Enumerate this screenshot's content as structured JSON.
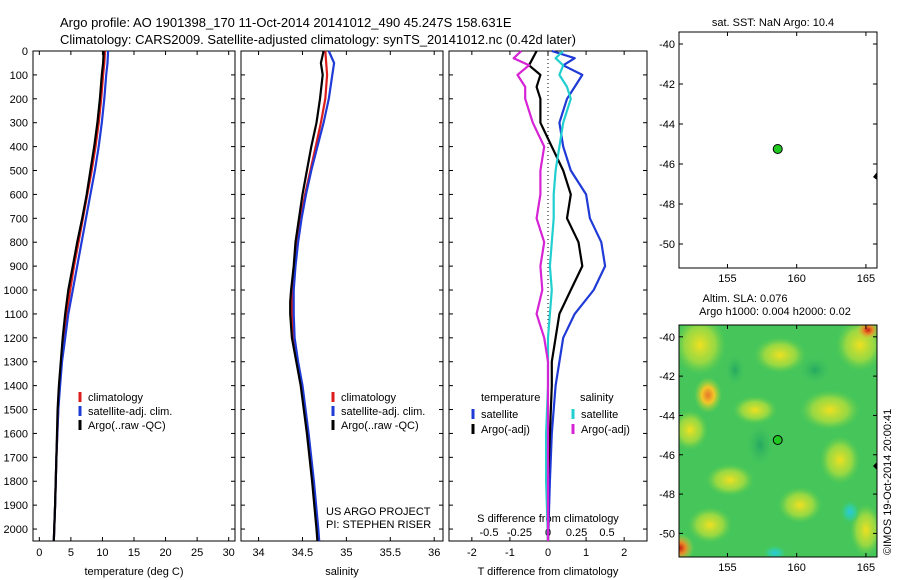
{
  "header": {
    "line1": "Argo profile: AO 1901398_170 11-Oct-2014 20141012_490 45.247S 158.631E",
    "line2": "Climatology: CARS2009. Satellite-adjusted climatology: synTS_20141012.nc (0.42d later)"
  },
  "colors": {
    "climatology": "#dd1c1c",
    "satellite": "#1f3ad6",
    "argo": "#000000",
    "salinity_satellite": "#22cfd0",
    "salinity_argo": "#d623d6",
    "marker": "#21c821"
  },
  "chart_data": [
    {
      "type": "line",
      "id": "temperature",
      "xlabel": "temperature (deg C)",
      "ylabel": "",
      "xlim": [
        -1,
        31
      ],
      "ylim": [
        2050,
        0
      ],
      "xticks": [
        0,
        5,
        10,
        15,
        20,
        25,
        30
      ],
      "yticks": [
        0,
        100,
        200,
        300,
        400,
        500,
        600,
        700,
        800,
        900,
        1000,
        1100,
        1200,
        1300,
        1400,
        1500,
        1600,
        1700,
        1800,
        1900,
        2000
      ],
      "legend": [
        "climatology",
        "satellite-adj. clim.",
        "Argo(..raw -QC)"
      ],
      "legend_position": "lower-right",
      "series": [
        {
          "name": "climatology",
          "color": "#dd1c1c",
          "depth": [
            0,
            50,
            100,
            200,
            300,
            400,
            500,
            600,
            700,
            800,
            900,
            1000,
            1100,
            1200,
            1300,
            1400,
            1500,
            1700,
            1900,
            2050
          ],
          "values": [
            10.4,
            10.3,
            10.1,
            9.8,
            9.4,
            8.9,
            8.3,
            7.6,
            6.9,
            6.2,
            5.5,
            4.9,
            4.3,
            3.9,
            3.5,
            3.2,
            3.0,
            2.7,
            2.5,
            2.3
          ]
        },
        {
          "name": "satellite-adj. clim.",
          "color": "#1f3ad6",
          "depth": [
            0,
            50,
            100,
            200,
            300,
            400,
            500,
            600,
            700,
            800,
            900,
            1000,
            1100,
            1200,
            1300,
            1400,
            1500,
            1700,
            1900,
            2050
          ],
          "values": [
            10.9,
            10.8,
            10.6,
            10.3,
            9.9,
            9.4,
            8.8,
            8.1,
            7.4,
            6.7,
            6.0,
            5.3,
            4.6,
            4.1,
            3.6,
            3.3,
            3.0,
            2.7,
            2.5,
            2.3
          ]
        },
        {
          "name": "Argo(..raw -QC)",
          "color": "#000000",
          "depth": [
            0,
            50,
            100,
            200,
            300,
            400,
            500,
            600,
            700,
            800,
            900,
            1000,
            1100,
            1200,
            1300,
            1400,
            1500,
            1700,
            1900,
            2050
          ],
          "values": [
            10.2,
            10.1,
            9.9,
            9.6,
            9.2,
            8.7,
            8.1,
            7.5,
            6.8,
            6.0,
            5.3,
            4.6,
            4.1,
            3.7,
            3.4,
            3.1,
            2.9,
            2.7,
            2.5,
            2.3
          ]
        }
      ]
    },
    {
      "type": "line",
      "id": "salinity",
      "xlabel": "salinity",
      "ylabel": "",
      "xlim": [
        33.8,
        36.1
      ],
      "ylim": [
        2050,
        0
      ],
      "xticks": [
        34,
        34.5,
        35,
        35.5,
        36
      ],
      "legend": [
        "climatology",
        "satellite-adj. clim.",
        "Argo(..raw -QC)"
      ],
      "legend_position": "lower-right",
      "annotation": [
        "US ARGO PROJECT",
        "PI: STEPHEN RISER"
      ],
      "series": [
        {
          "name": "climatology",
          "color": "#dd1c1c",
          "depth": [
            0,
            50,
            100,
            200,
            300,
            400,
            500,
            600,
            700,
            800,
            900,
            1000,
            1050,
            1100,
            1200,
            1300,
            1400,
            1600,
            1800,
            2000,
            2050
          ],
          "values": [
            34.76,
            34.77,
            34.78,
            34.76,
            34.71,
            34.65,
            34.59,
            34.53,
            34.48,
            34.44,
            34.41,
            34.39,
            34.38,
            34.38,
            34.4,
            34.44,
            34.49,
            34.56,
            34.62,
            34.67,
            34.68
          ]
        },
        {
          "name": "satellite-adj. clim.",
          "color": "#1f3ad6",
          "depth": [
            0,
            50,
            100,
            200,
            300,
            400,
            500,
            600,
            700,
            800,
            900,
            1000,
            1050,
            1100,
            1200,
            1300,
            1400,
            1600,
            1800,
            2000,
            2050
          ],
          "values": [
            34.8,
            34.86,
            34.84,
            34.8,
            34.74,
            34.67,
            34.6,
            34.54,
            34.49,
            34.45,
            34.42,
            34.4,
            34.4,
            34.4,
            34.41,
            34.45,
            34.5,
            34.57,
            34.63,
            34.68,
            34.69
          ]
        },
        {
          "name": "Argo(..raw -QC)",
          "color": "#000000",
          "depth": [
            0,
            50,
            100,
            200,
            300,
            400,
            500,
            600,
            700,
            800,
            900,
            1000,
            1050,
            1100,
            1200,
            1300,
            1400,
            1600,
            1800,
            2000,
            2050
          ],
          "values": [
            34.74,
            34.71,
            34.73,
            34.7,
            34.66,
            34.6,
            34.55,
            34.5,
            34.46,
            34.42,
            34.4,
            34.37,
            34.36,
            34.36,
            34.38,
            34.43,
            34.48,
            34.55,
            34.61,
            34.66,
            34.67
          ]
        }
      ]
    },
    {
      "type": "line",
      "id": "difference",
      "xlabel": "T difference from climatology",
      "xlabel_top": "S difference from climatology",
      "xlim": [
        -2.6,
        2.6
      ],
      "ylim": [
        2050,
        0
      ],
      "xticks": [
        -2,
        -1,
        0,
        1,
        2
      ],
      "xticks_top": [
        "-0.5",
        "-0.25",
        "0",
        "0.25",
        "0.5"
      ],
      "xticks_top_position": [
        -1.55,
        -0.75,
        0,
        0.75,
        1.55
      ],
      "legend_position": "lower-center",
      "legend_headers": [
        "temperature",
        "salinity"
      ],
      "legend": [
        "satellite",
        "Argo(-adj)",
        "satellite",
        "Argo(-adj)"
      ],
      "series": [
        {
          "name": "satellite",
          "group": "temperature",
          "color": "#1f3ad6",
          "depth": [
            0,
            30,
            60,
            100,
            150,
            200,
            300,
            400,
            500,
            600,
            700,
            800,
            900,
            1000,
            1100,
            1200,
            1300,
            1400,
            1600,
            1800,
            2050
          ],
          "values": [
            0.1,
            0.7,
            0.4,
            0.9,
            0.7,
            0.5,
            0.3,
            0.4,
            0.6,
            1.0,
            1.1,
            1.4,
            1.5,
            1.2,
            0.7,
            0.4,
            0.3,
            0.2,
            0.1,
            0.05,
            0.0
          ]
        },
        {
          "name": "Argo(-adj)",
          "group": "temperature",
          "color": "#000000",
          "depth": [
            0,
            30,
            60,
            100,
            150,
            200,
            300,
            400,
            500,
            600,
            700,
            800,
            900,
            1000,
            1100,
            1200,
            1300,
            1400,
            1600,
            1800,
            2050
          ],
          "values": [
            -0.3,
            -0.4,
            -0.5,
            -0.2,
            -0.3,
            -0.2,
            -0.2,
            0.1,
            0.4,
            0.6,
            0.5,
            0.8,
            0.9,
            0.6,
            0.3,
            0.2,
            0.1,
            0.1,
            0.05,
            0.0,
            0.0
          ]
        },
        {
          "name": "satellite",
          "group": "salinity",
          "color": "#22cfd0",
          "depth": [
            0,
            30,
            60,
            100,
            150,
            200,
            300,
            400,
            500,
            600,
            700,
            800,
            900,
            1000,
            1100,
            1200,
            1300,
            1400,
            1600,
            1800,
            2050
          ],
          "values": [
            0.4,
            0.2,
            0.4,
            0.3,
            0.5,
            0.6,
            0.4,
            0.3,
            0.2,
            0.15,
            0.15,
            0.1,
            0.05,
            0.1,
            0.05,
            0.0,
            0.0,
            0.0,
            -0.05,
            -0.05,
            0.0
          ]
        },
        {
          "name": "Argo(-adj)",
          "group": "salinity",
          "color": "#d623d6",
          "depth": [
            0,
            30,
            60,
            100,
            150,
            200,
            300,
            400,
            500,
            600,
            700,
            800,
            900,
            1000,
            1100,
            1200,
            1300,
            1400,
            1600,
            1800,
            2050
          ],
          "values": [
            -0.7,
            -0.9,
            -0.5,
            -0.8,
            -0.6,
            -0.6,
            -0.4,
            -0.1,
            -0.2,
            -0.2,
            -0.3,
            -0.1,
            -0.2,
            -0.15,
            -0.3,
            -0.1,
            0.0,
            0.0,
            0.0,
            0.0,
            0.0
          ]
        }
      ]
    },
    {
      "type": "scatter",
      "id": "sst-map",
      "title": "sat. SST: NaN Argo: 10.4",
      "xlim": [
        151.5,
        165.8
      ],
      "ylim": [
        -51.2,
        -39.4
      ],
      "xticks": [
        155,
        160,
        165
      ],
      "yticks": [
        -40,
        -42,
        -44,
        -46,
        -48,
        -50
      ],
      "points": [
        {
          "x": 158.63,
          "y": -45.25,
          "color": "#21c821"
        }
      ]
    },
    {
      "type": "heatmap",
      "id": "sla-map",
      "title_line1": "Altim. SLA: 0.076",
      "title_line2": "Argo h1000: 0.004 h2000: 0.02",
      "xlim": [
        151.5,
        165.8
      ],
      "ylim": [
        -51.2,
        -39.4
      ],
      "xticks": [
        155,
        160,
        165
      ],
      "yticks": [
        -40,
        -42,
        -44,
        -46,
        -48,
        -50
      ],
      "points": [
        {
          "x": 158.63,
          "y": -45.25,
          "color": "#21c821"
        }
      ],
      "side_label": "©IMOS 19-Oct-2014 20:00:41"
    }
  ]
}
